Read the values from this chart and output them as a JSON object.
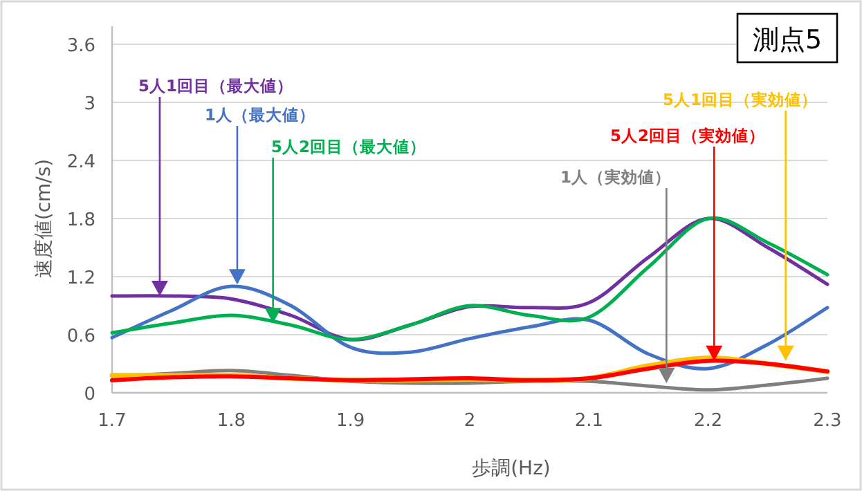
{
  "chart_data": {
    "type": "line",
    "title": "測点5",
    "xlabel": "歩調(Hz)",
    "ylabel": "速度値(cm/s)",
    "x": [
      1.7,
      1.75,
      1.8,
      1.85,
      1.9,
      1.95,
      2.0,
      2.05,
      2.1,
      2.15,
      2.2,
      2.25,
      2.3
    ],
    "xlim": [
      1.7,
      2.3
    ],
    "xticks": [
      1.7,
      1.8,
      1.9,
      2,
      2.1,
      2.2,
      2.3
    ],
    "ylim": [
      0,
      3.6
    ],
    "yticks": [
      0,
      0.6,
      1.2,
      1.8,
      2.4,
      3,
      3.6
    ],
    "grid": "y",
    "marker": "none",
    "line_style": "solid",
    "series": [
      {
        "color": "#7030a0",
        "values": [
          1.0,
          1.0,
          0.97,
          0.8,
          0.55,
          0.7,
          0.89,
          0.88,
          0.93,
          1.4,
          1.8,
          1.5,
          1.12
        ]
      },
      {
        "color": "#4472c4",
        "values": [
          0.57,
          0.85,
          1.1,
          0.9,
          0.47,
          0.42,
          0.56,
          0.68,
          0.75,
          0.4,
          0.25,
          0.5,
          0.88
        ]
      },
      {
        "color": "#00b050",
        "values": [
          0.62,
          0.72,
          0.8,
          0.7,
          0.55,
          0.7,
          0.9,
          0.8,
          0.78,
          1.3,
          1.8,
          1.55,
          1.22
        ]
      },
      {
        "color": "#7f7f7f",
        "values": [
          0.17,
          0.2,
          0.23,
          0.18,
          0.12,
          0.1,
          0.1,
          0.12,
          0.12,
          0.07,
          0.03,
          0.08,
          0.15
        ]
      },
      {
        "color": "#ffc000",
        "values": [
          0.18,
          0.18,
          0.18,
          0.15,
          0.13,
          0.13,
          0.14,
          0.13,
          0.15,
          0.28,
          0.36,
          0.3,
          0.22
        ]
      },
      {
        "color": "#ff0000",
        "values": [
          0.13,
          0.16,
          0.17,
          0.15,
          0.13,
          0.14,
          0.15,
          0.13,
          0.15,
          0.25,
          0.33,
          0.3,
          0.22
        ]
      }
    ],
    "annotations": [
      {
        "text": "5人1回目（最大値）",
        "x": 1.74,
        "y": 1.0
      },
      {
        "text": "1人（最大値）",
        "x": 1.805,
        "y": 1.12
      },
      {
        "text": "5人2回目（最大値）",
        "x": 1.835,
        "y": 0.72
      },
      {
        "text": "1人（実効値）",
        "x": 2.165,
        "y": 0.1
      },
      {
        "text": "5人1回目（実効値）",
        "x": 2.265,
        "y": 0.33
      },
      {
        "text": "5人2回目（実効値）",
        "x": 2.205,
        "y": 0.33
      }
    ]
  }
}
